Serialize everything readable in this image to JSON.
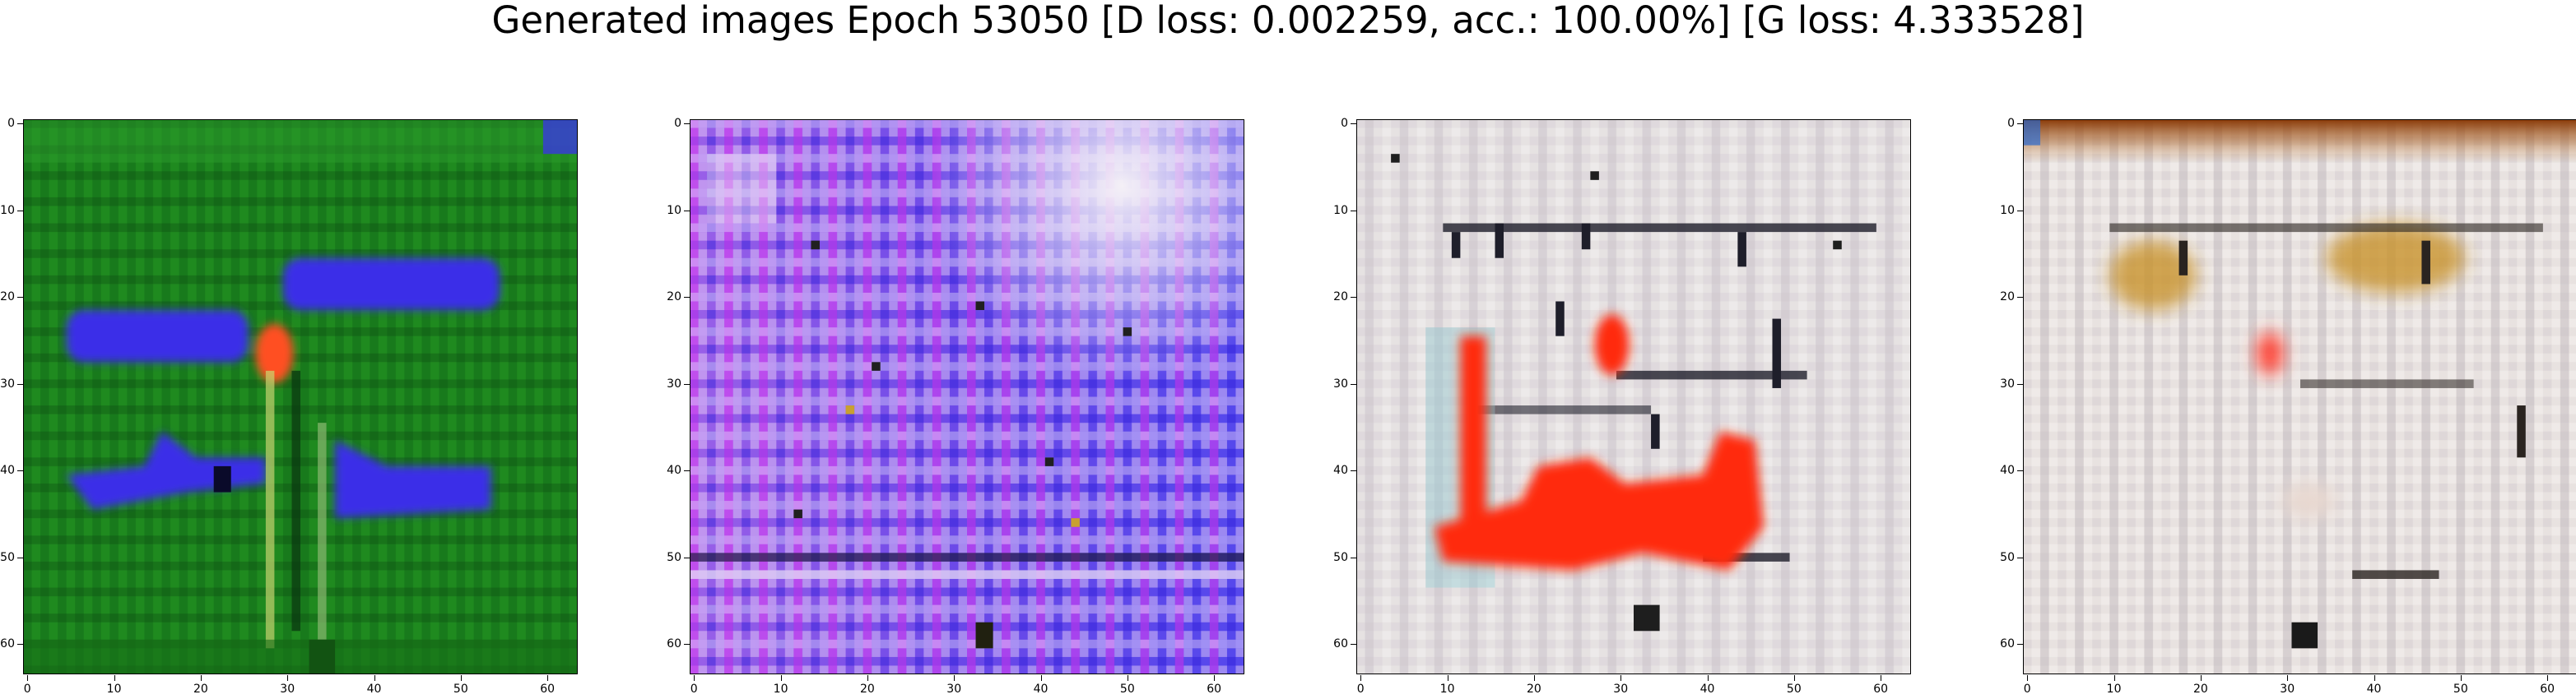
{
  "title": "Generated images Epoch 53050 [D loss: 0.002259, acc.: 100.00%] [G loss: 4.333528]",
  "chart_data": [
    {
      "type": "heatmap",
      "image_size": 64,
      "xlim": [
        -0.5,
        63.5
      ],
      "ylim": [
        63.5,
        -0.5
      ],
      "xticks": [
        0,
        10,
        20,
        30,
        40,
        50,
        60
      ],
      "yticks": [
        0,
        10,
        20,
        30,
        40,
        50,
        60
      ],
      "background_color": "#1f8a1f",
      "dominant_colors": [
        "#1f8a1f",
        "#3a2ee8",
        "#ff4020"
      ]
    },
    {
      "type": "heatmap",
      "image_size": 64,
      "xlim": [
        -0.5,
        63.5
      ],
      "ylim": [
        63.5,
        -0.5
      ],
      "xticks": [
        0,
        10,
        20,
        30,
        40,
        50,
        60
      ],
      "yticks": [
        0,
        10,
        20,
        30,
        40,
        50,
        60
      ],
      "background_color": "#b48fe8",
      "dominant_colors": [
        "#3a2ee8",
        "#e060f0",
        "#f2eef8"
      ]
    },
    {
      "type": "heatmap",
      "image_size": 64,
      "xlim": [
        -0.5,
        63.5
      ],
      "ylim": [
        63.5,
        -0.5
      ],
      "xticks": [
        0,
        10,
        20,
        30,
        40,
        50,
        60
      ],
      "yticks": [
        0,
        10,
        20,
        30,
        40,
        50,
        60
      ],
      "background_color": "#e6e2e2",
      "dominant_colors": [
        "#ff2a10",
        "#e6e2e2",
        "#20202a"
      ]
    },
    {
      "type": "heatmap",
      "image_size": 64,
      "xlim": [
        -0.5,
        63.5
      ],
      "ylim": [
        63.5,
        -0.5
      ],
      "xticks": [
        0,
        10,
        20,
        30,
        40,
        50,
        60
      ],
      "yticks": [
        0,
        10,
        20,
        30,
        40,
        50,
        60
      ],
      "background_color": "#e8e2e0",
      "dominant_colors": [
        "#a04a10",
        "#c8922a",
        "#e8e2e0"
      ]
    }
  ]
}
